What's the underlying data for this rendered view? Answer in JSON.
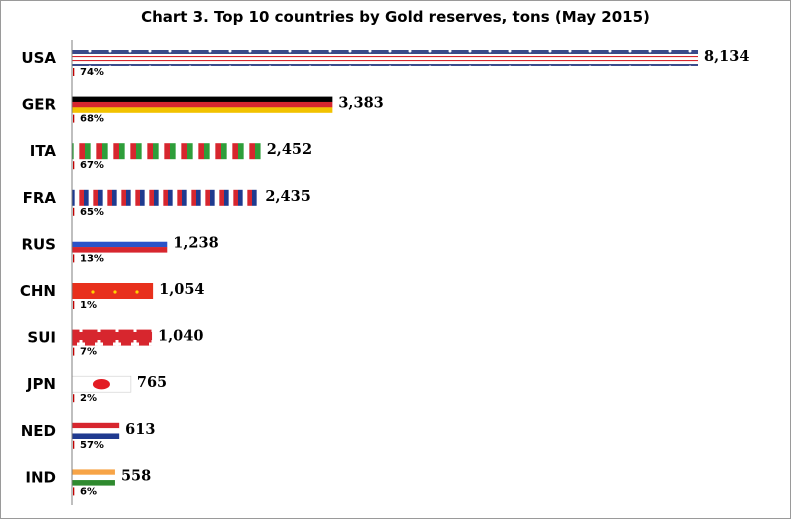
{
  "chart_data": {
    "type": "bar",
    "orientation": "horizontal",
    "title": "Chart 3. Top 10 countries by Gold reserves, tons (May 2015)",
    "categories": [
      "USA",
      "GER",
      "ITA",
      "FRA",
      "RUS",
      "CHN",
      "SUI",
      "JPN",
      "NED",
      "IND"
    ],
    "values": [
      8134,
      3383,
      2452,
      2435,
      1238,
      1054,
      1040,
      765,
      613,
      558
    ],
    "value_labels": [
      "8,134",
      "3,383",
      "2,452",
      "2,435",
      "1,238",
      "1,054",
      "1,040",
      "765",
      "613",
      "558"
    ],
    "share_labels": [
      "74%",
      "68%",
      "67%",
      "65%",
      "13%",
      "1%",
      "7%",
      "2%",
      "57%",
      "6%"
    ],
    "bar_fills": [
      "flag-usa",
      "flag-germany",
      "flag-italy",
      "flag-france",
      "flag-russia",
      "flag-china",
      "flag-switzerland",
      "flag-japan",
      "flag-netherlands",
      "flag-india"
    ],
    "xlim": [
      0,
      8134
    ],
    "grid": false,
    "legend": "none"
  },
  "colors": {
    "frame": "#9a9a9a",
    "axis": "#7f7f7f",
    "red": "#d7262e",
    "blue": "#1f3a8f",
    "green": "#2e9e3a",
    "gold": "#f2c200",
    "black": "#000000",
    "white": "#ffffff",
    "saffron": "#f7a447",
    "india_green": "#2f8a2f",
    "china_red": "#e8301c",
    "china_star": "#ffd200"
  }
}
